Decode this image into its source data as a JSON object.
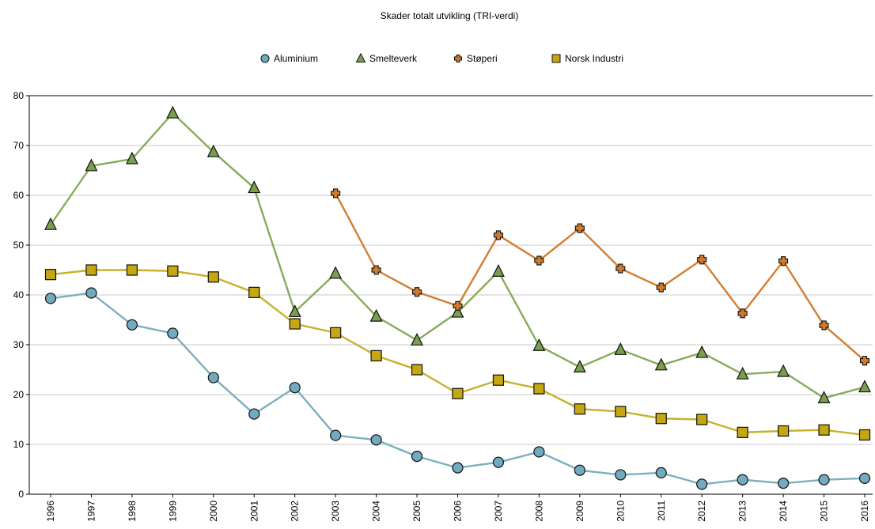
{
  "chart_data": {
    "type": "line",
    "title": "Skader totalt utvikling (TRI-verdi)",
    "xlabel": "",
    "ylabel": "",
    "ylim": [
      0,
      80
    ],
    "yticks": [
      0,
      10,
      20,
      30,
      40,
      50,
      60,
      70,
      80
    ],
    "grid": true,
    "legend_position": "top",
    "categories": [
      "1996",
      "1997",
      "1998",
      "1999",
      "2000",
      "2001",
      "2002",
      "2003",
      "2004",
      "2005",
      "2006",
      "2007",
      "2008",
      "2009",
      "2010",
      "2011",
      "2012",
      "2013",
      "2014",
      "2015",
      "2016"
    ],
    "series": [
      {
        "name": "Aluminium",
        "marker": "circle",
        "color": "#7bafc0",
        "marker_fill": "#72aac0",
        "values": [
          39.3,
          40.4,
          34.0,
          32.3,
          23.4,
          16.1,
          21.4,
          11.8,
          10.9,
          7.6,
          5.3,
          6.4,
          8.5,
          4.8,
          3.9,
          4.3,
          2.0,
          2.9,
          2.2,
          2.9,
          3.2
        ]
      },
      {
        "name": "Smelteverk",
        "marker": "triangle",
        "color": "#87ac5b",
        "marker_fill": "#7a9f4f",
        "values": [
          54.1,
          65.9,
          67.3,
          76.5,
          68.7,
          61.5,
          36.6,
          44.3,
          35.7,
          30.9,
          36.5,
          44.7,
          29.8,
          25.5,
          29.0,
          25.9,
          28.4,
          24.1,
          24.6,
          19.3,
          21.5
        ]
      },
      {
        "name": "Støperi",
        "marker": "cross",
        "color": "#d27e32",
        "marker_fill": "#d07a2f",
        "values": [
          null,
          null,
          null,
          null,
          null,
          null,
          null,
          60.4,
          45.0,
          40.6,
          37.8,
          52.0,
          46.9,
          53.4,
          45.3,
          41.5,
          47.1,
          36.3,
          46.8,
          33.9,
          26.8
        ]
      },
      {
        "name": "Norsk Industri",
        "marker": "square",
        "color": "#c8b12a",
        "marker_fill": "#c5a712",
        "values": [
          44.1,
          45.0,
          45.0,
          44.8,
          43.6,
          40.5,
          34.2,
          32.4,
          27.8,
          25.0,
          20.2,
          22.9,
          21.2,
          17.1,
          16.6,
          15.2,
          15.0,
          12.4,
          12.7,
          12.9,
          11.9
        ]
      }
    ]
  }
}
